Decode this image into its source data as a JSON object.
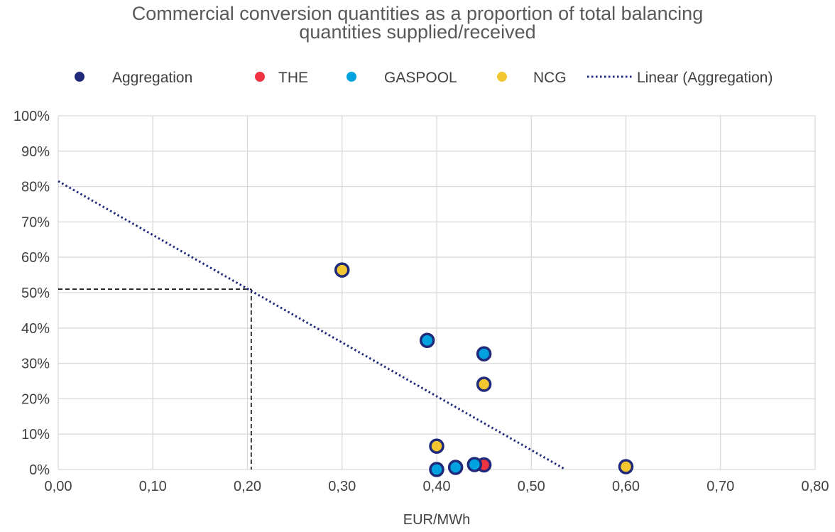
{
  "chart_data": {
    "type": "scatter",
    "title_lines": [
      "Commercial conversion quantities as a proportion of total balancing",
      "quantities supplied/received"
    ],
    "xlabel": "EUR/MWh",
    "ylabel": "",
    "xlim": [
      0,
      0.8
    ],
    "ylim": [
      0,
      1
    ],
    "x_ticks": [
      "0,00",
      "0,10",
      "0,20",
      "0,30",
      "0,40",
      "0,50",
      "0,60",
      "0,70",
      "0,80"
    ],
    "y_ticks": [
      "0%",
      "10%",
      "20%",
      "30%",
      "40%",
      "50%",
      "60%",
      "70%",
      "80%",
      "90%",
      "100%"
    ],
    "grid": true,
    "legend_position": "top",
    "legend": [
      {
        "label": "Aggregation",
        "kind": "marker",
        "color": "#1f2a7a"
      },
      {
        "label": "THE",
        "kind": "marker",
        "color": "#ef3340"
      },
      {
        "label": "GASPOOL",
        "kind": "marker",
        "color": "#00a3e0"
      },
      {
        "label": "NCG",
        "kind": "marker",
        "color": "#f2c62e"
      },
      {
        "label": "Linear (Aggregation)",
        "kind": "dotted-line",
        "color": "#1f2a7a"
      }
    ],
    "series": [
      {
        "name": "THE",
        "color": "#ef3340",
        "points": [
          [
            0.45,
            0.013
          ]
        ]
      },
      {
        "name": "GASPOOL",
        "color": "#00a3e0",
        "points": [
          [
            0.39,
            0.365
          ],
          [
            0.45,
            0.327
          ],
          [
            0.4,
            0.0
          ],
          [
            0.42,
            0.006
          ],
          [
            0.44,
            0.014
          ]
        ]
      },
      {
        "name": "NCG",
        "color": "#f2c62e",
        "points": [
          [
            0.3,
            0.564
          ],
          [
            0.45,
            0.241
          ],
          [
            0.4,
            0.066
          ],
          [
            0.6,
            0.008
          ]
        ]
      }
    ],
    "marker_outline_color": "#1f2a7a",
    "trendline": {
      "name": "Linear (Aggregation)",
      "color": "#1f2a7a",
      "intercept": 0.815,
      "slope": -1.52,
      "x_start": 0.0,
      "x_end": 0.536
    },
    "reference_point": {
      "x": 0.204,
      "y": 0.51,
      "color": "#000000"
    },
    "grid_color": "#d9d9d9"
  }
}
